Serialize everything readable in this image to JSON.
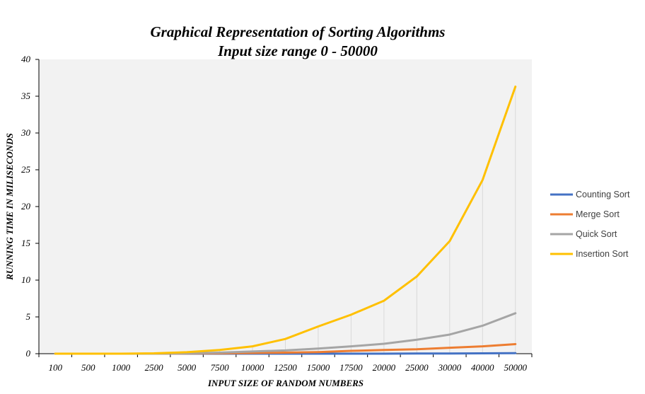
{
  "chart_data": {
    "type": "line",
    "title": "Graphical Representation of Sorting Algorithms",
    "subtitle": "Input size range 0 - 50000",
    "xlabel": "INPUT SIZE OF RANDOM NUMBERS",
    "ylabel": "RUNNING TIME IN MILISECONDS",
    "ylim": [
      0,
      40
    ],
    "yticks": [
      "0",
      "5",
      "10",
      "15",
      "20",
      "25",
      "30",
      "35",
      "40"
    ],
    "categories": [
      "100",
      "500",
      "1000",
      "2500",
      "5000",
      "7500",
      "10000",
      "12500",
      "15000",
      "17500",
      "20000",
      "25000",
      "30000",
      "40000",
      "50000"
    ],
    "legend_position": "right",
    "grid": false,
    "series": [
      {
        "name": "Counting Sort",
        "color": "#4472c4",
        "values": [
          0,
          0,
          0,
          0,
          0,
          0,
          0,
          0,
          0,
          0,
          0,
          0.02,
          0.03,
          0.05,
          0.07
        ]
      },
      {
        "name": "Merge Sort",
        "color": "#ed7d31",
        "values": [
          0,
          0,
          0,
          0,
          0.02,
          0.05,
          0.1,
          0.15,
          0.22,
          0.38,
          0.5,
          0.6,
          0.8,
          1.0,
          1.3
        ]
      },
      {
        "name": "Quick Sort",
        "color": "#a5a5a5",
        "values": [
          0,
          0,
          0,
          0,
          0.05,
          0.15,
          0.3,
          0.45,
          0.7,
          1.0,
          1.35,
          1.9,
          2.6,
          3.8,
          5.5
        ]
      },
      {
        "name": "Insertion Sort",
        "color": "#ffc000",
        "values": [
          0,
          0,
          0,
          0.05,
          0.2,
          0.5,
          1.0,
          2.0,
          3.7,
          5.3,
          7.2,
          10.5,
          15.3,
          23.6,
          36.3
        ]
      }
    ]
  }
}
